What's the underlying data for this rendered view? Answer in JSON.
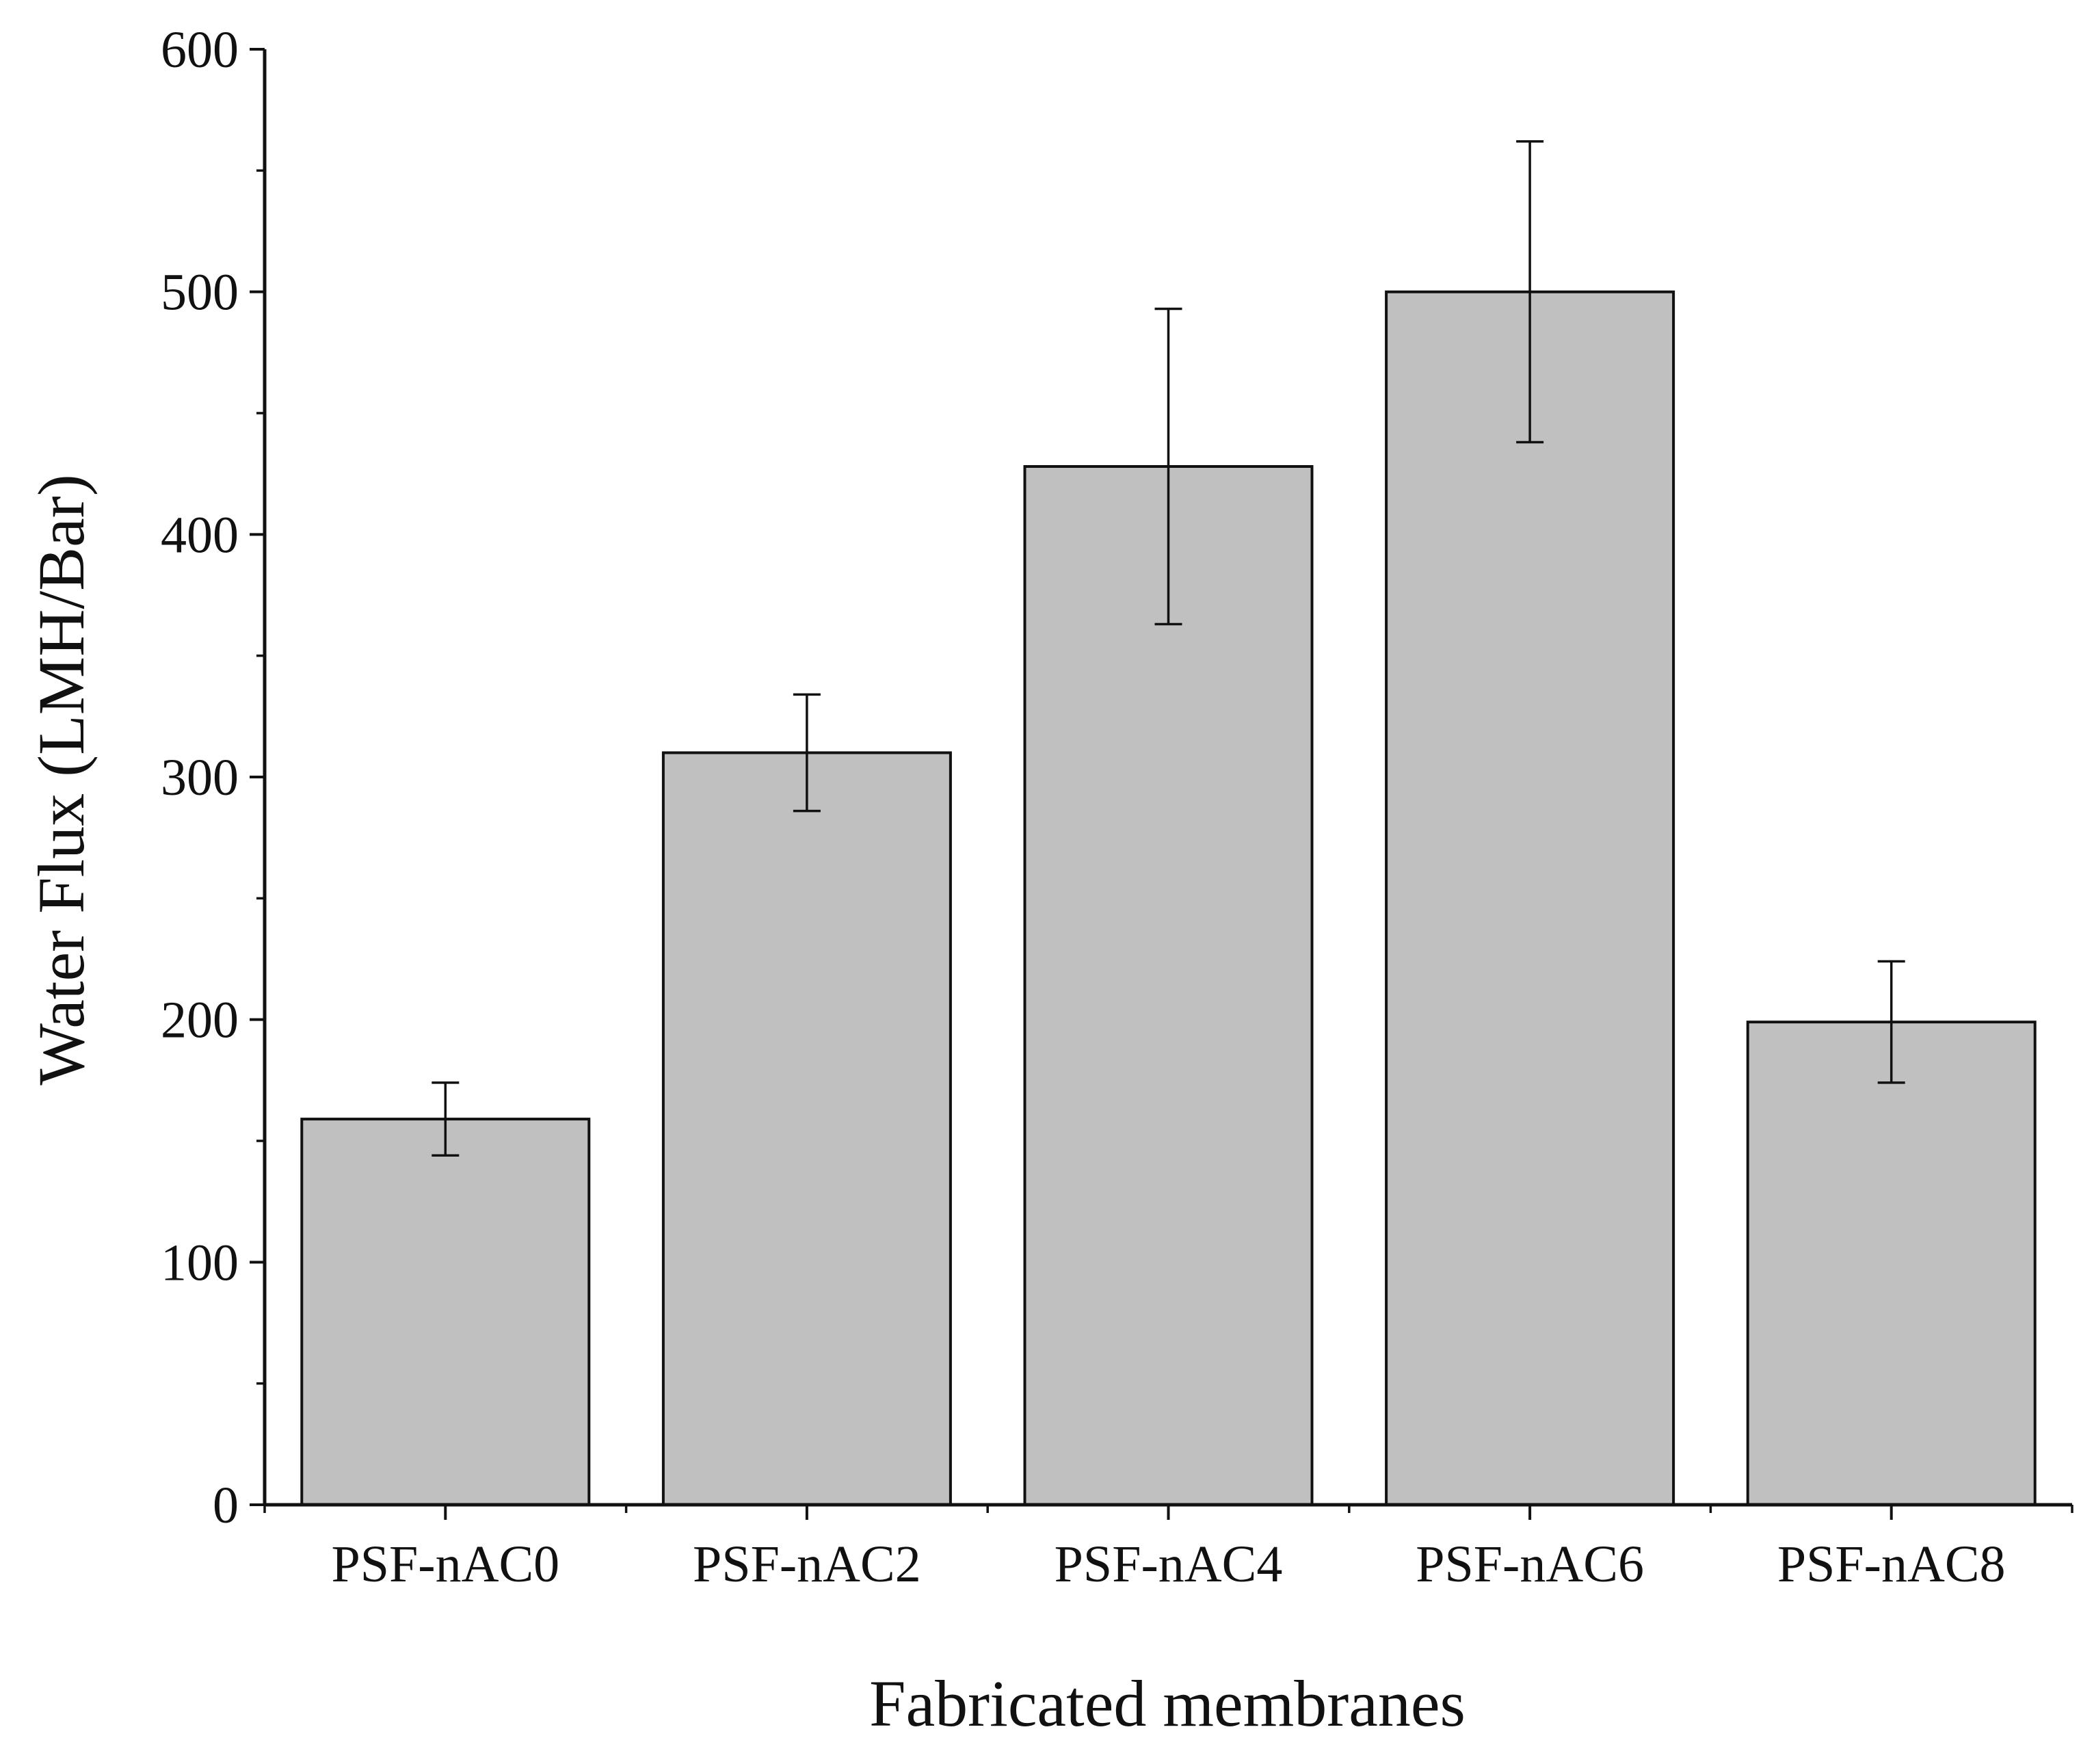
{
  "chart_data": {
    "type": "bar",
    "title": "",
    "xlabel": "Fabricated membranes",
    "ylabel": "Water Flux (LMH/Bar)",
    "categories": [
      "PSF-nAC0",
      "PSF-nAC2",
      "PSF-nAC4",
      "PSF-nAC6",
      "PSF-nAC8"
    ],
    "values": [
      159,
      310,
      428,
      500,
      199
    ],
    "error": [
      15,
      24,
      65,
      62,
      25
    ],
    "ylim": [
      0,
      600
    ],
    "yticks": [
      0,
      100,
      200,
      300,
      400,
      500,
      600
    ],
    "ytick_labels": [
      "0",
      "100",
      "200",
      "300",
      "400",
      "500",
      "600"
    ],
    "minor_step": 50,
    "grid": false,
    "legend": false,
    "bar_color": "#c0c0c0",
    "edge_color": "#111111"
  }
}
